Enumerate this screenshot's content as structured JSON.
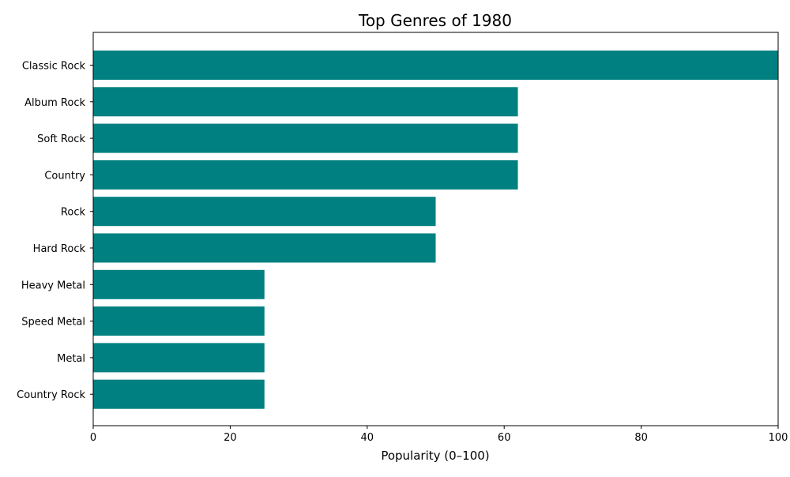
{
  "chart_data": {
    "type": "bar",
    "orientation": "horizontal",
    "title": "Top Genres of 1980",
    "xlabel": "Popularity (0–100)",
    "ylabel": "",
    "categories": [
      "Classic Rock",
      "Album Rock",
      "Soft Rock",
      "Country",
      "Rock",
      "Hard Rock",
      "Heavy Metal",
      "Speed Metal",
      "Metal",
      "Country Rock"
    ],
    "values": [
      100,
      62,
      62,
      62,
      50,
      50,
      25,
      25,
      25,
      25
    ],
    "xlim": [
      0,
      100
    ],
    "xticks": [
      0,
      20,
      40,
      60,
      80,
      100
    ],
    "grid": false,
    "legend": "none",
    "bar_color": "#008080"
  }
}
